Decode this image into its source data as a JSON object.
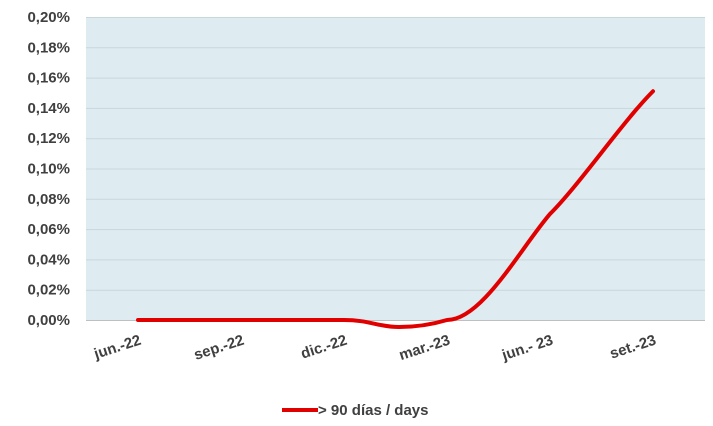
{
  "chart_data": {
    "type": "line",
    "title": "",
    "xlabel": "",
    "ylabel": "",
    "categories": [
      "jun.-22",
      "sep.-22",
      "dic.-22",
      "mar.-23",
      "jun.- 23",
      "set.-23"
    ],
    "y_ticks": [
      "0,00%",
      "0,02%",
      "0,04%",
      "0,06%",
      "0,08%",
      "0,10%",
      "0,12%",
      "0,14%",
      "0,16%",
      "0,18%",
      "0,20%"
    ],
    "ylim": [
      0,
      0.2
    ],
    "series": [
      {
        "name": "> 90 días / days",
        "color": "#e00000",
        "values": [
          0.0,
          0.0,
          0.0,
          0.0,
          0.07,
          0.151
        ]
      }
    ],
    "legend_position": "bottom",
    "grid": true,
    "plot_background": "#deecf2",
    "grid_color": "#c9d6dc"
  }
}
